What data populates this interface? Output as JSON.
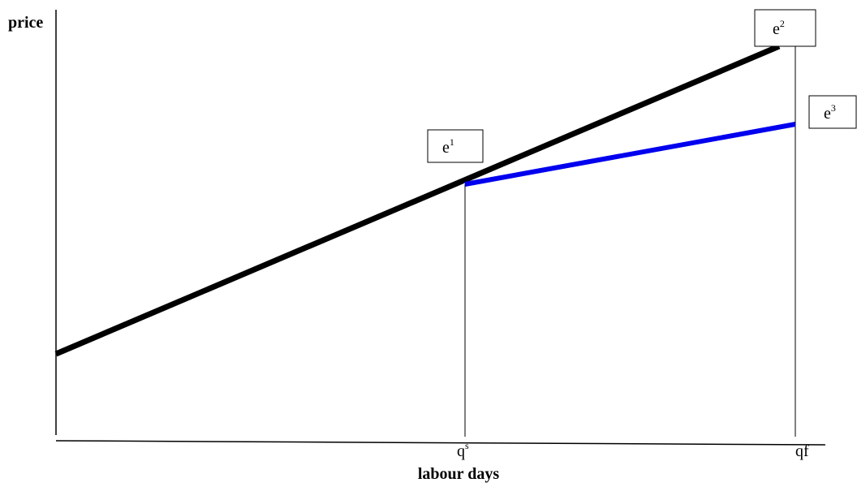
{
  "axes": {
    "y_label": "price",
    "x_label": "labour days"
  },
  "nodes": [
    {
      "base": "e",
      "sup": "1"
    },
    {
      "base": "e",
      "sup": "2"
    },
    {
      "base": "e",
      "sup": "3"
    }
  ],
  "ticks": [
    {
      "base": "q",
      "sup": "s"
    },
    {
      "label": "qf"
    }
  ]
}
